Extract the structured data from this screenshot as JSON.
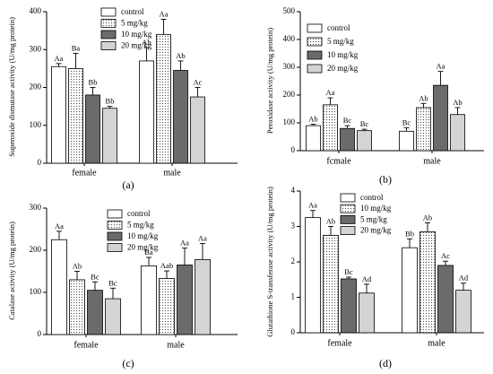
{
  "chart_data": [
    {
      "panel_label": "(a)",
      "type": "bar",
      "ylabel": "Superoxide dismutase activity (U/mg protein)",
      "categories": [
        "female",
        "male"
      ],
      "ylim": [
        0,
        400
      ],
      "yticks": [
        0,
        100,
        200,
        300,
        400
      ],
      "grid": false,
      "legend_position": "top-left",
      "series": [
        {
          "name": "control",
          "color": "#ffffff",
          "values": [
            255,
            270
          ],
          "errors": [
            8,
            35
          ],
          "labels": [
            "Aa",
            "Ab"
          ]
        },
        {
          "name": "5 mg/kg",
          "color": "#ffffff",
          "pattern": "dots",
          "values": [
            250,
            340
          ],
          "errors": [
            40,
            40
          ],
          "labels": [
            "Ba",
            "Aa"
          ]
        },
        {
          "name": "10 mg/kg",
          "color": "#6b6b6b",
          "values": [
            180,
            245
          ],
          "errors": [
            20,
            25
          ],
          "labels": [
            "Bb",
            "Ab"
          ]
        },
        {
          "name": "20 mg/kg",
          "color": "#d4d4d4",
          "values": [
            145,
            175
          ],
          "errors": [
            5,
            25
          ],
          "labels": [
            "Bb",
            "Ac"
          ]
        }
      ]
    },
    {
      "panel_label": "(b)",
      "type": "bar",
      "ylabel": "Peroxidase activity (U/mg protein)",
      "categories": [
        "fcmale",
        "male"
      ],
      "ylim": [
        0,
        500
      ],
      "yticks": [
        0,
        100,
        200,
        300,
        400,
        500
      ],
      "grid": false,
      "legend_position": "top-left",
      "series": [
        {
          "name": "control",
          "color": "#ffffff",
          "values": [
            90,
            70
          ],
          "errors": [
            5,
            12
          ],
          "labels": [
            "Ab",
            "Bc"
          ]
        },
        {
          "name": "5 mg/kg",
          "color": "#ffffff",
          "pattern": "dots",
          "values": [
            165,
            155
          ],
          "errors": [
            25,
            15
          ],
          "labels": [
            "Aa",
            "Ab"
          ]
        },
        {
          "name": "10 mg/kg",
          "color": "#6b6b6b",
          "values": [
            80,
            235
          ],
          "errors": [
            10,
            50
          ],
          "labels": [
            "Bc",
            "Aa"
          ]
        },
        {
          "name": "20 mg/kg",
          "color": "#d4d4d4",
          "values": [
            72,
            130
          ],
          "errors": [
            5,
            25
          ],
          "labels": [
            "Bc",
            "Ab"
          ]
        }
      ]
    },
    {
      "panel_label": "(c)",
      "type": "bar",
      "ylabel": "Catalase activity (U/mg protein)",
      "categories": [
        "female",
        "male"
      ],
      "ylim": [
        0,
        300
      ],
      "yticks": [
        0,
        100,
        200,
        300
      ],
      "grid": false,
      "legend_position": "top-left",
      "series": [
        {
          "name": "control",
          "color": "#ffffff",
          "values": [
            225,
            163
          ],
          "errors": [
            20,
            20
          ],
          "labels": [
            "Aa",
            "Ba"
          ]
        },
        {
          "name": "5 mg/kg",
          "color": "#ffffff",
          "pattern": "dots",
          "values": [
            130,
            133
          ],
          "errors": [
            20,
            18
          ],
          "labels": [
            "Ab",
            "Aab"
          ]
        },
        {
          "name": "10 mg/kg",
          "color": "#6b6b6b",
          "values": [
            105,
            165
          ],
          "errors": [
            20,
            40
          ],
          "labels": [
            "Bc",
            "Aa"
          ]
        },
        {
          "name": "20 mg/kg",
          "color": "#d4d4d4",
          "values": [
            85,
            178
          ],
          "errors": [
            25,
            38
          ],
          "labels": [
            "Bc",
            "Aa"
          ]
        }
      ]
    },
    {
      "panel_label": "(d)",
      "type": "bar",
      "ylabel": "Glutathione S-transferase activity (U/mg protein)",
      "categories": [
        "female",
        "male"
      ],
      "ylim": [
        0,
        4
      ],
      "yticks": [
        0,
        1,
        2,
        3,
        4
      ],
      "grid": false,
      "legend_position": "top-left",
      "series": [
        {
          "name": "control",
          "color": "#ffffff",
          "values": [
            3.25,
            2.4
          ],
          "errors": [
            0.2,
            0.25
          ],
          "labels": [
            "Aa",
            "Bb"
          ]
        },
        {
          "name": "10 mg/kg",
          "color": "#ffffff",
          "pattern": "dots",
          "values": [
            2.75,
            2.85
          ],
          "errors": [
            0.25,
            0.25
          ],
          "labels": [
            "Ab",
            "Ab"
          ]
        },
        {
          "name": "5 mg/kg",
          "color": "#6b6b6b",
          "values": [
            1.52,
            1.9
          ],
          "errors": [
            0.05,
            0.12
          ],
          "labels": [
            "Bc",
            "Ac"
          ]
        },
        {
          "name": "20 mg/kg",
          "color": "#d4d4d4",
          "values": [
            1.12,
            1.2
          ],
          "errors": [
            0.25,
            0.2
          ],
          "labels": [
            "Ad",
            "Ad"
          ]
        }
      ]
    }
  ]
}
